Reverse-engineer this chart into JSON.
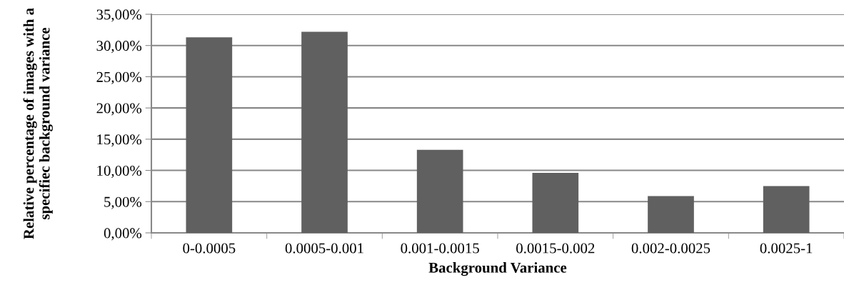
{
  "chart_data": {
    "type": "bar",
    "xlabel": "Background Variance",
    "ylabel": "Relative percentage of images with a specifiec background variance",
    "categories": [
      "0-0.0005",
      "0.0005-0.001",
      "0.001-0.0015",
      "0.0015-0.002",
      "0.002-0.0025",
      "0.0025-1"
    ],
    "values": [
      31.3,
      32.2,
      13.3,
      9.6,
      5.9,
      7.5
    ],
    "color": "#606060",
    "ylim": [
      0,
      35
    ],
    "yticks": [
      {
        "value": 0,
        "label": "0,00%"
      },
      {
        "value": 5,
        "label": "5,00%"
      },
      {
        "value": 10,
        "label": "10,00%"
      },
      {
        "value": 15,
        "label": "15,00%"
      },
      {
        "value": 20,
        "label": "20,00%"
      },
      {
        "value": 25,
        "label": "25,00%"
      },
      {
        "value": 30,
        "label": "30,00%"
      },
      {
        "value": 35,
        "label": "35,00%"
      }
    ],
    "grid": "y"
  }
}
